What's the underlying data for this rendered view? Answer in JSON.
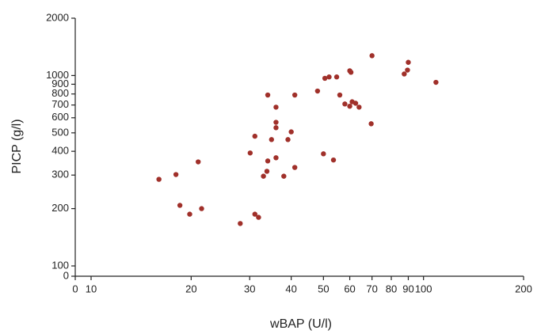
{
  "chart_data": {
    "type": "scatter",
    "x_label": "wBAP (U/l)",
    "y_label": "PICP (g/l)",
    "color": "#a0302a",
    "x": [
      16.0,
      18.0,
      18.5,
      19.8,
      21,
      21.5,
      28.1,
      30.1,
      31.1,
      31.1,
      31.9,
      33,
      33.8,
      34,
      34,
      34.9,
      36,
      36,
      36,
      36,
      38,
      39.1,
      40,
      41,
      41,
      48,
      50,
      50.5,
      52,
      53.6,
      54.8,
      56,
      58,
      60,
      60,
      60.5,
      61,
      62.5,
      64,
      69.6,
      70,
      87.5,
      89.5,
      90,
      109
    ],
    "y": [
      285,
      302,
      208,
      187,
      352,
      200,
      167,
      392,
      480,
      187,
      180,
      296,
      314,
      356,
      790,
      461,
      370,
      682,
      568,
      532,
      296,
      461,
      506,
      329,
      790,
      829,
      388,
      967,
      983,
      360,
      983,
      790,
      709,
      690,
      1059,
      1040,
      728,
      715,
      682,
      558,
      1271,
      1019,
      1068,
      1173,
      921
    ],
    "log_x": true,
    "log_y": true,
    "xlim": [
      0,
      200
    ],
    "xticks": [
      0,
      10,
      20,
      30,
      40,
      50,
      60,
      70,
      80,
      90,
      100,
      200
    ],
    "ylim": [
      0,
      2000
    ],
    "yticks": [
      0,
      100,
      200,
      300,
      400,
      500,
      600,
      700,
      800,
      900,
      1000,
      2000
    ]
  }
}
